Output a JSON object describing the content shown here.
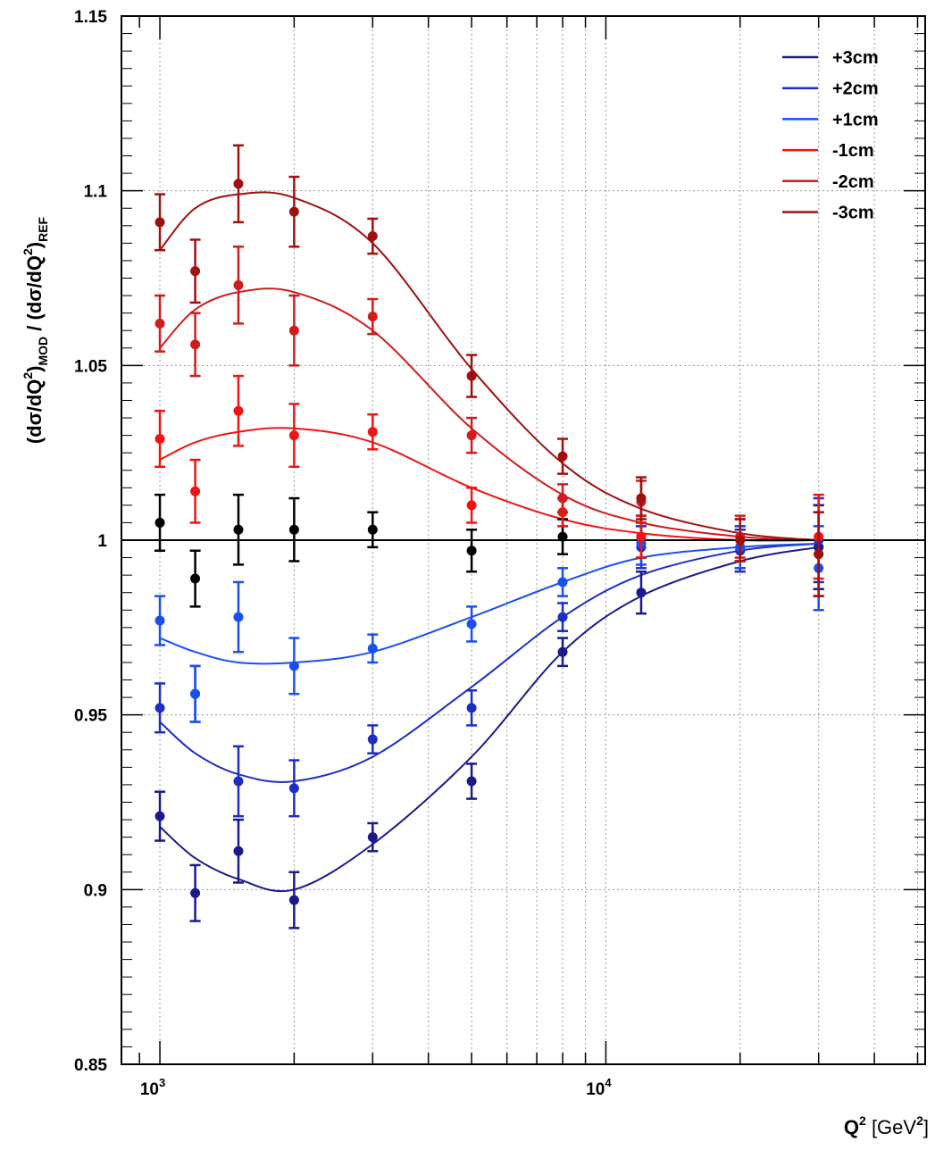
{
  "chart_data": {
    "type": "scatter",
    "title": "",
    "xlabel": {
      "main": "Q",
      "sup1": "2",
      "mid": " [GeV",
      "sup2": "2",
      "end": "]"
    },
    "ylabel": {
      "p1": "(dσ/dQ",
      "s1": "2",
      "p2": ")",
      "sub1": "MOD",
      "p3": " / (dσ/dQ",
      "s2": "2",
      "p4": ")",
      "sub2": "REF"
    },
    "x_scale": "log",
    "xlim": [
      820,
      52000
    ],
    "ylim": [
      0.85,
      1.15
    ],
    "grid": true,
    "legend_position": "top-right",
    "x_tick_labels": [
      {
        "value": 1000,
        "base": "10",
        "exp": "3"
      },
      {
        "value": 10000,
        "base": "10",
        "exp": "4"
      }
    ],
    "y_tick_labels": [
      "0.85",
      "0.9",
      "0.95",
      "1",
      "1.05",
      "1.1",
      "1.15"
    ],
    "y_ticks": [
      0.85,
      0.9,
      0.95,
      1.0,
      1.05,
      1.1,
      1.15
    ],
    "x": [
      1000,
      1200,
      1500,
      2000,
      3000,
      5000,
      8000,
      12000,
      20000,
      30000
    ],
    "reference_line": {
      "y": 1.0,
      "color": "#000000"
    },
    "series": [
      {
        "name": "+3cm",
        "color": "#1a1a8c",
        "values": [
          0.921,
          0.899,
          0.911,
          0.897,
          0.915,
          0.931,
          0.968,
          0.985,
          0.997,
          0.998
        ],
        "errors": [
          0.007,
          0.008,
          0.009,
          0.008,
          0.004,
          0.005,
          0.004,
          0.006,
          0.006,
          0.012
        ],
        "curve": [
          0.918,
          0.909,
          0.903,
          0.9,
          0.913,
          0.938,
          0.968,
          0.984,
          0.994,
          0.998
        ]
      },
      {
        "name": "+2cm",
        "color": "#1c2ec4",
        "values": [
          0.952,
          0.956,
          0.931,
          0.929,
          0.943,
          0.952,
          0.978,
          0.998,
          0.997,
          1.0
        ],
        "errors": [
          0.007,
          0.008,
          0.01,
          0.008,
          0.004,
          0.005,
          0.004,
          0.006,
          0.006,
          0.012
        ],
        "curve": [
          0.948,
          0.939,
          0.933,
          0.931,
          0.938,
          0.958,
          0.978,
          0.99,
          0.997,
          0.999
        ]
      },
      {
        "name": "+1cm",
        "color": "#1a4ff0",
        "values": [
          0.977,
          0.956,
          0.978,
          0.964,
          0.969,
          0.976,
          0.988,
          0.999,
          0.998,
          0.992
        ],
        "errors": [
          0.007,
          0.008,
          0.01,
          0.008,
          0.004,
          0.005,
          0.004,
          0.006,
          0.006,
          0.012
        ],
        "curve": [
          0.972,
          0.968,
          0.965,
          0.965,
          0.968,
          0.978,
          0.988,
          0.995,
          0.998,
          0.999
        ]
      },
      {
        "name": "-1cm",
        "color": "#f01414",
        "values": [
          1.029,
          1.014,
          1.037,
          1.03,
          1.031,
          1.01,
          1.008,
          1.001,
          1.0,
          1.001
        ],
        "errors": [
          0.008,
          0.009,
          0.01,
          0.009,
          0.005,
          0.005,
          0.004,
          0.006,
          0.006,
          0.012
        ],
        "curve": [
          1.023,
          1.028,
          1.031,
          1.032,
          1.028,
          1.015,
          1.006,
          1.002,
          1.0,
          1.0
        ]
      },
      {
        "name": "-2cm",
        "color": "#d01c1c",
        "values": [
          1.062,
          1.056,
          1.073,
          1.06,
          1.064,
          1.03,
          1.012,
          1.011,
          1.001,
          0.996
        ],
        "errors": [
          0.008,
          0.009,
          0.011,
          0.01,
          0.005,
          0.005,
          0.004,
          0.006,
          0.006,
          0.012
        ],
        "curve": [
          1.055,
          1.066,
          1.071,
          1.071,
          1.06,
          1.032,
          1.013,
          1.005,
          1.001,
          1.0
        ]
      },
      {
        "name": "-3cm",
        "color": "#a01010",
        "values": [
          1.091,
          1.077,
          1.102,
          1.094,
          1.087,
          1.047,
          1.024,
          1.012,
          1.0,
          0.996
        ],
        "errors": [
          0.008,
          0.009,
          0.011,
          0.01,
          0.005,
          0.006,
          0.005,
          0.006,
          0.006,
          0.012
        ],
        "curve": [
          1.083,
          1.095,
          1.099,
          1.098,
          1.085,
          1.049,
          1.022,
          1.009,
          1.002,
          1.0
        ]
      }
    ],
    "reference_points": {
      "color": "#000000",
      "values": [
        1.005,
        0.989,
        1.003,
        1.003,
        1.003,
        0.997,
        1.001,
        1.001,
        0.998,
        0.998
      ],
      "errors": [
        0.008,
        0.008,
        0.01,
        0.009,
        0.005,
        0.006,
        0.005,
        0.006,
        0.006,
        0.012
      ]
    }
  }
}
